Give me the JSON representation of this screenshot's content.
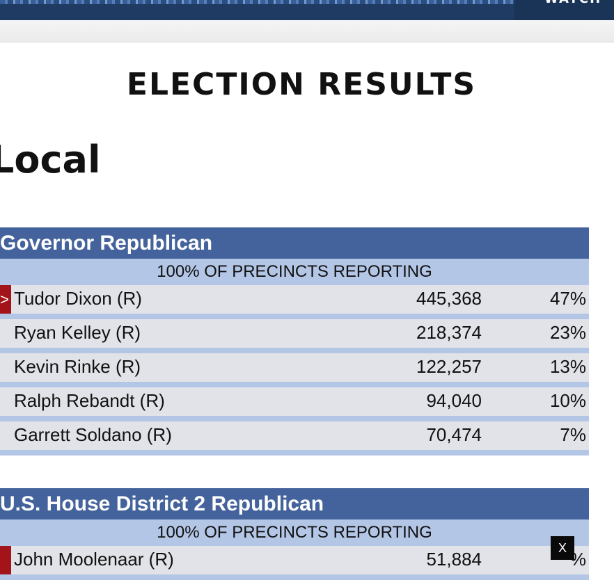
{
  "topbar": {
    "watch_label": "WATCH"
  },
  "page_title": "ELECTION RESULTS",
  "section_title": "Local",
  "races": [
    {
      "title": "Governor Republican",
      "reporting": "100% OF PRECINCTS REPORTING",
      "candidates": [
        {
          "name": "Tudor Dixon (R)",
          "votes": "445,368",
          "pct": "47%",
          "winner": true,
          "marker": ">"
        },
        {
          "name": "Ryan Kelley (R)",
          "votes": "218,374",
          "pct": "23%",
          "winner": false
        },
        {
          "name": "Kevin Rinke (R)",
          "votes": "122,257",
          "pct": "13%",
          "winner": false
        },
        {
          "name": "Ralph Rebandt (R)",
          "votes": "94,040",
          "pct": "10%",
          "winner": false
        },
        {
          "name": "Garrett Soldano (R)",
          "votes": "70,474",
          "pct": "7%",
          "winner": false
        }
      ]
    },
    {
      "title": "U.S. House District 2 Republican",
      "reporting": "100% OF PRECINCTS REPORTING",
      "candidates": [
        {
          "name": "John Moolenaar (R)",
          "votes": "51,884",
          "pct": "%",
          "winner": true,
          "marker": ""
        }
      ]
    }
  ],
  "close_label": "X",
  "colors": {
    "header_blue": "#44639c",
    "light_blue": "#b3c6e6",
    "row_grey": "#e2e3e8",
    "winner_red": "#a3131a",
    "topbar_navy": "#1f3b63"
  }
}
